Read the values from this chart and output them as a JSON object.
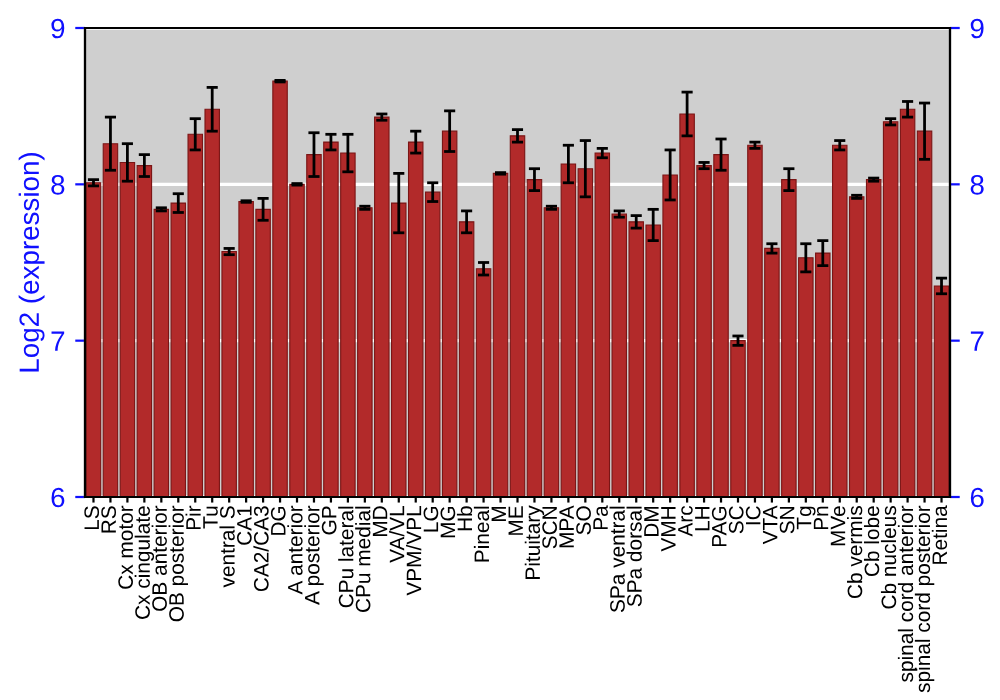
{
  "chart_data": {
    "type": "bar",
    "ylabel": "Log2 (expression)",
    "categories": [
      "LS",
      "RS",
      "Cx motor",
      "Cx cingulate",
      "OB anterior",
      "OB posterior",
      "Pir",
      "Tu",
      "ventral S",
      "CA1",
      "CA2/CA3",
      "DG",
      "A anterior",
      "A posterior",
      "GP",
      "CPu lateral",
      "CPu medial",
      "MD",
      "VA/VL",
      "VPM/VPL",
      "LG",
      "MG",
      "Hb",
      "Pineal",
      "M",
      "ME",
      "Pituitary",
      "SCN",
      "MPA",
      "SO",
      "Pa",
      "SPa ventral",
      "SPa dorsal",
      "DM",
      "VMH",
      "Arc",
      "LH",
      "PAG",
      "SC",
      "IC",
      "VTA",
      "SN",
      "Tg",
      "Pn",
      "MVe",
      "Cb vermis",
      "Cb lobe",
      "Cb nucleus",
      "spinal cord anterior",
      "spinal cord posterior",
      "Retina"
    ],
    "series": [
      {
        "color": "#b22a2a",
        "values": [
          8.01,
          8.26,
          8.14,
          8.12,
          7.84,
          7.88,
          8.32,
          8.48,
          7.57,
          7.89,
          7.84,
          8.66,
          8.0,
          8.19,
          8.27,
          8.2,
          7.85,
          8.43,
          7.88,
          8.27,
          7.95,
          8.34,
          7.76,
          7.46,
          8.07,
          8.31,
          8.03,
          7.85,
          8.13,
          8.1,
          8.2,
          7.81,
          7.76,
          7.74,
          8.06,
          8.45,
          8.12,
          8.19,
          7.0,
          8.25,
          7.59,
          8.03,
          7.53,
          7.56,
          8.25,
          7.92,
          8.03,
          8.4,
          8.48,
          8.34,
          7.35
        ],
        "errors": [
          0.02,
          0.17,
          0.12,
          0.07,
          0.01,
          0.06,
          0.1,
          0.14,
          0.02,
          0.005,
          0.07,
          0.005,
          0.005,
          0.14,
          0.05,
          0.12,
          0.01,
          0.02,
          0.19,
          0.07,
          0.06,
          0.13,
          0.07,
          0.04,
          0.005,
          0.04,
          0.07,
          0.01,
          0.12,
          0.18,
          0.03,
          0.02,
          0.04,
          0.1,
          0.16,
          0.14,
          0.02,
          0.1,
          0.03,
          0.02,
          0.03,
          0.07,
          0.09,
          0.08,
          0.03,
          0.01,
          0.01,
          0.02,
          0.05,
          0.18,
          0.05
        ]
      }
    ],
    "ylim": [
      6,
      9
    ],
    "yticks": [
      6,
      7,
      8,
      9
    ],
    "y2lim": [
      6,
      9
    ],
    "y2ticks": [
      6,
      7,
      8,
      9
    ],
    "grid": "y"
  }
}
